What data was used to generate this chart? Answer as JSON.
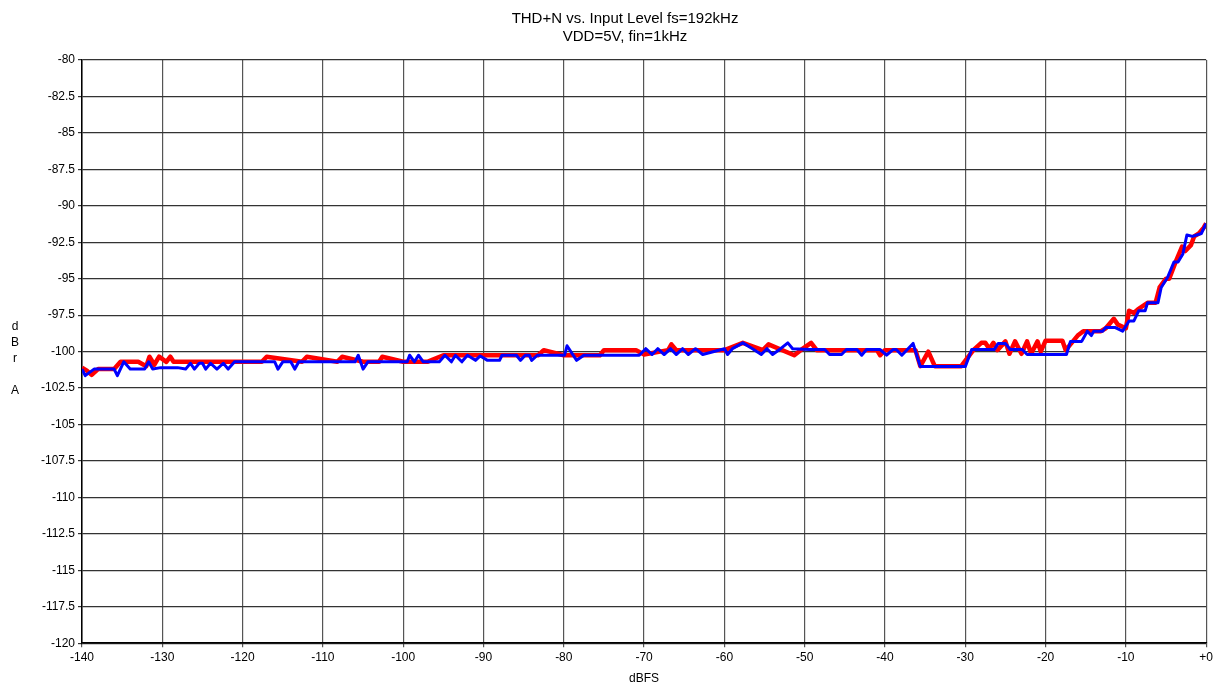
{
  "chart_data": {
    "type": "line",
    "title": "THD+N vs. Input Level fs=192kHz",
    "subtitle": "VDD=5V, fin=1kHz",
    "xlabel": "dBFS",
    "ylabel": "dBr A",
    "xlim": [
      -140,
      0
    ],
    "xticks": [
      -140,
      -130,
      -120,
      -110,
      -100,
      -90,
      -80,
      -70,
      -60,
      -50,
      -40,
      -30,
      -20,
      -10,
      {
        "value": 0,
        "label": "+0"
      }
    ],
    "ylim": [
      -120,
      -80
    ],
    "yticks": [
      -120,
      -117.5,
      -115,
      -112.5,
      -110,
      -107.5,
      -105,
      -102.5,
      -100,
      -97.5,
      -95,
      -92.5,
      -90,
      -87.5,
      -85,
      -82.5,
      -80
    ],
    "grid": true,
    "marker": "none",
    "line_style": "solid",
    "series": [
      {
        "color": "#ff0000",
        "x": [
          -140,
          -139.4,
          -138.8,
          -138,
          -136,
          -135.2,
          -133,
          -132,
          -131.6,
          -131,
          -130.4,
          -129.5,
          -129,
          -128.6,
          -128,
          -125,
          -117.6,
          -117,
          -112.6,
          -112,
          -108.2,
          -107.6,
          -105,
          -103,
          -102.6,
          -100,
          -97,
          -95,
          -92,
          -90,
          -88,
          -83.2,
          -82.5,
          -80,
          -75.5,
          -75,
          -71,
          -70,
          -67,
          -66.6,
          -66,
          -63,
          -60,
          -57.7,
          -55.2,
          -54.5,
          -51.3,
          -50.5,
          -49.2,
          -48.5,
          -41,
          -40.6,
          -40,
          -36.2,
          -35.6,
          -34.6,
          -33.8,
          -30.5,
          -29,
          -28,
          -27.5,
          -27,
          -26.5,
          -26,
          -25,
          -24.5,
          -23.8,
          -23,
          -22.3,
          -21.8,
          -21,
          -20.6,
          -20,
          -17.9,
          -17.5,
          -16,
          -15.3,
          -13.1,
          -12.5,
          -11.5,
          -11,
          -10,
          -9.6,
          -9,
          -8.5,
          -7.3,
          -6.3,
          -5.8,
          -5,
          -4.6,
          -3.8,
          -3,
          -2.6,
          -1.9,
          -1.5,
          -0.9,
          -0.3,
          0
        ],
        "values": [
          -101.1,
          -101.3,
          -101.6,
          -101.2,
          -101.2,
          -100.7,
          -100.7,
          -101,
          -100.35,
          -100.9,
          -100.35,
          -100.7,
          -100.35,
          -100.7,
          -100.7,
          -100.7,
          -100.7,
          -100.35,
          -100.7,
          -100.35,
          -100.7,
          -100.35,
          -100.7,
          -100.7,
          -100.35,
          -100.7,
          -100.7,
          -100.25,
          -100.25,
          -100.25,
          -100.25,
          -100.25,
          -99.9,
          -100.25,
          -100.25,
          -99.9,
          -99.9,
          -100.2,
          -99.9,
          -99.5,
          -99.9,
          -99.9,
          -99.9,
          -99.4,
          -99.9,
          -99.5,
          -100.25,
          -99.9,
          -99.4,
          -99.9,
          -99.9,
          -100.25,
          -99.9,
          -99.9,
          -101,
          -100,
          -101,
          -101,
          -99.9,
          -99.4,
          -99.4,
          -99.8,
          -99.4,
          -99.9,
          -99.3,
          -100.15,
          -99.3,
          -100.15,
          -99.3,
          -100.15,
          -99.3,
          -100,
          -99.25,
          -99.25,
          -99.9,
          -98.9,
          -98.6,
          -98.6,
          -98.4,
          -97.75,
          -98.15,
          -98.4,
          -97.2,
          -97.35,
          -97.1,
          -96.65,
          -96.65,
          -95.6,
          -95,
          -95,
          -93.85,
          -92.8,
          -93.1,
          -92.7,
          -92.1,
          -91.9,
          -91.5,
          -91.2
        ]
      },
      {
        "color": "#0000ff",
        "x": [
          -140,
          -139.6,
          -138.5,
          -136,
          -135.6,
          -134.8,
          -134,
          -132.2,
          -131.7,
          -131.2,
          -130.2,
          -128.1,
          -127.1,
          -126.5,
          -126,
          -125.4,
          -125,
          -124.6,
          -124,
          -123.2,
          -122.4,
          -121.8,
          -121,
          -116,
          -115.6,
          -115,
          -114,
          -113.5,
          -113,
          -106,
          -105.6,
          -105,
          -104.4,
          -99.5,
          -99.2,
          -98.6,
          -98.1,
          -97.5,
          -95.5,
          -94.8,
          -94,
          -93.5,
          -92.7,
          -92,
          -91,
          -90.4,
          -89.5,
          -88,
          -87.7,
          -87,
          -85.9,
          -85.4,
          -84.8,
          -84.3,
          -84,
          -83.3,
          -79.9,
          -79.6,
          -78.4,
          -77.5,
          -70.6,
          -69.8,
          -69,
          -68.3,
          -67.5,
          -66.7,
          -66,
          -65.2,
          -64.5,
          -63.6,
          -62.7,
          -60,
          -59.6,
          -59,
          -57.7,
          -56.5,
          -55.4,
          -54.7,
          -54,
          -53,
          -52.1,
          -51.5,
          -49.4,
          -47.5,
          -46.9,
          -45.4,
          -44.8,
          -43.5,
          -42.9,
          -42.3,
          -40.6,
          -39.8,
          -39,
          -38.6,
          -37.9,
          -36.5,
          -35.6,
          -30,
          -29.2,
          -26.4,
          -25.9,
          -25,
          -24.4,
          -22.9,
          -22.3,
          -17.4,
          -16.9,
          -15.5,
          -14.8,
          -14.3,
          -14,
          -12.9,
          -12.5,
          -11.3,
          -10.4,
          -9.6,
          -9,
          -8.4,
          -7.6,
          -7.3,
          -6,
          -5.6,
          -4.8,
          -4,
          -3.5,
          -2.9,
          -2.4,
          -1.7,
          -0.6,
          0
        ],
        "values": [
          -101.2,
          -101.65,
          -101.2,
          -101.2,
          -101.65,
          -100.7,
          -101.2,
          -101.2,
          -100.7,
          -101.2,
          -101.1,
          -101.1,
          -101.2,
          -100.8,
          -101.2,
          -100.8,
          -100.8,
          -101.2,
          -100.8,
          -101.2,
          -100.8,
          -101.2,
          -100.7,
          -100.7,
          -101.2,
          -100.7,
          -100.7,
          -101.2,
          -100.7,
          -100.7,
          -100.25,
          -101.2,
          -100.7,
          -100.7,
          -100.25,
          -100.7,
          -100.25,
          -100.7,
          -100.7,
          -100.25,
          -100.7,
          -100.25,
          -100.7,
          -100.25,
          -100.6,
          -100.3,
          -100.6,
          -100.6,
          -100.25,
          -100.25,
          -100.25,
          -100.6,
          -100.25,
          -100.25,
          -100.6,
          -100.25,
          -100.25,
          -99.6,
          -100.6,
          -100.25,
          -100.25,
          -99.8,
          -100.2,
          -99.8,
          -100.2,
          -99.8,
          -100.2,
          -99.8,
          -100.2,
          -99.8,
          -100.2,
          -99.8,
          -100.2,
          -99.8,
          -99.4,
          -99.8,
          -100.2,
          -99.8,
          -100.2,
          -99.8,
          -99.4,
          -99.8,
          -99.86,
          -99.86,
          -100.2,
          -100.2,
          -99.86,
          -99.86,
          -100.25,
          -99.86,
          -99.86,
          -100.25,
          -99.86,
          -99.86,
          -100.25,
          -99.44,
          -101.03,
          -101.03,
          -99.86,
          -99.86,
          -99.44,
          -99.44,
          -99.86,
          -99.86,
          -100.2,
          -100.2,
          -99.3,
          -99.3,
          -98.6,
          -98.9,
          -98.6,
          -98.6,
          -98.35,
          -98.35,
          -98.6,
          -97.9,
          -97.9,
          -97.2,
          -97.2,
          -96.65,
          -96.65,
          -95.6,
          -94.9,
          -93.85,
          -93.85,
          -93.3,
          -92,
          -92.1,
          -91.9,
          -91.2
        ]
      }
    ]
  }
}
